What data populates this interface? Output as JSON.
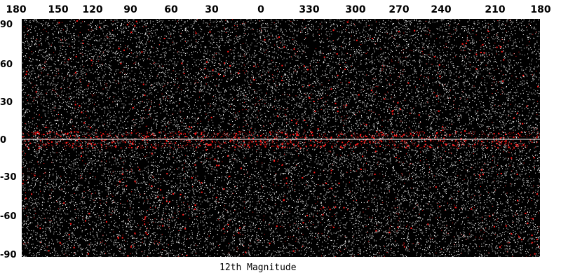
{
  "map": {
    "caption": "12th Magnitude",
    "longitude_labels": [
      "180",
      "150",
      "120",
      "90",
      "60",
      "30",
      "0",
      "330",
      "300",
      "270",
      "240",
      "210",
      "180"
    ],
    "latitude_labels": [
      "90",
      "60",
      "30",
      "0",
      "-30",
      "-60",
      "-90"
    ],
    "colors": {
      "background": "#000000",
      "stars": "#ffffff",
      "highlighted_stars": "#ff1a1a",
      "equator_line": "#ffffff"
    }
  }
}
